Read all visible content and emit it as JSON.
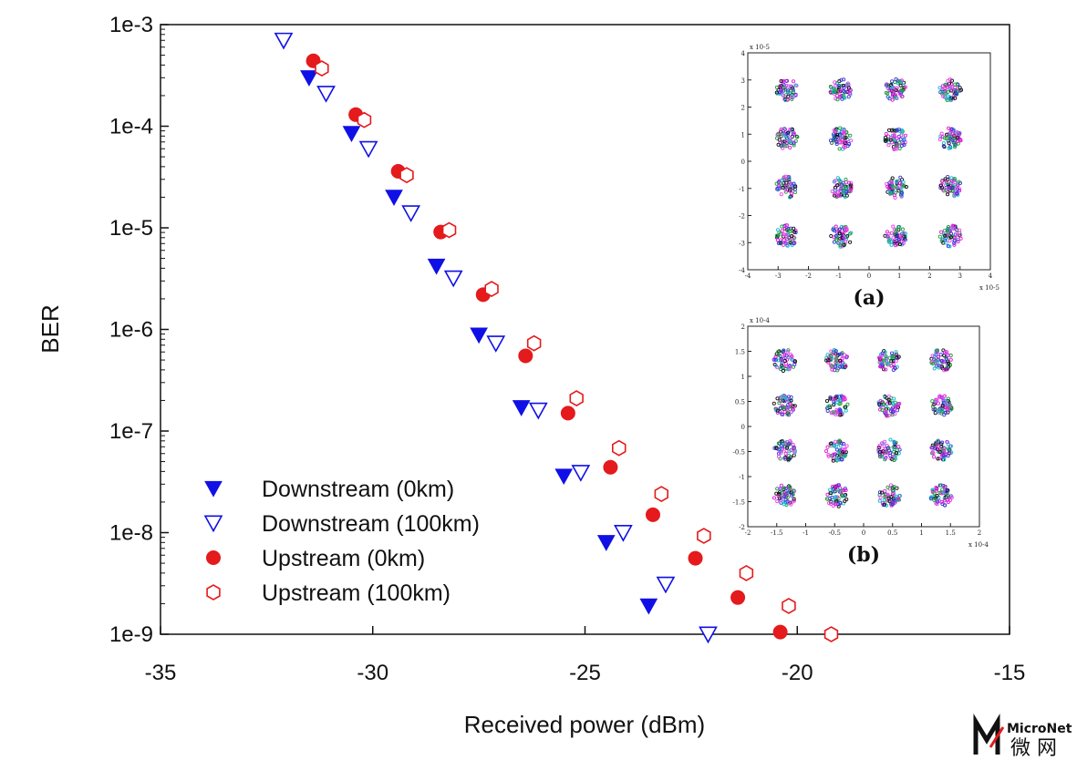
{
  "chart_data": {
    "type": "scatter",
    "xlabel": "Received power (dBm)",
    "ylabel": "BER",
    "xlim": [
      -35,
      -15
    ],
    "ylim_log10": [
      -9,
      -3
    ],
    "log_y": true,
    "x_ticks": [
      -35,
      -30,
      -25,
      -20,
      -15
    ],
    "x_tick_labels": [
      "-35",
      "-30",
      "-25",
      "-20",
      "-15"
    ],
    "y_ticks_log10": [
      -3,
      -4,
      -5,
      -6,
      -7,
      -8,
      -9
    ],
    "y_tick_labels": [
      "1e-3",
      "1e-4",
      "1e-5",
      "1e-6",
      "1e-7",
      "1e-8",
      "1e-9"
    ],
    "grid": false,
    "legend_position": "bottom-left",
    "series": [
      {
        "name": "Downstream (0km)",
        "marker": "triangle-down-filled",
        "color": "#1010e6",
        "x": [
          -31.5,
          -30.5,
          -29.5,
          -28.5,
          -27.5,
          -26.5,
          -25.5,
          -24.5,
          -23.5
        ],
        "y": [
          0.0003,
          8.5e-05,
          2e-05,
          4.2e-06,
          8.8e-07,
          1.7e-07,
          3.6e-08,
          8e-09,
          1.9e-09
        ]
      },
      {
        "name": "Downstream (100km)",
        "marker": "triangle-down-open",
        "color": "#1010e6",
        "x": [
          -32.1,
          -31.1,
          -30.1,
          -29.1,
          -28.1,
          -27.1,
          -26.1,
          -25.1,
          -24.1,
          -23.1,
          -22.1
        ],
        "y": [
          0.0007,
          0.00021,
          6e-05,
          1.4e-05,
          3.2e-06,
          7.3e-07,
          1.6e-07,
          3.9e-08,
          1e-08,
          3.1e-09,
          1e-09
        ]
      },
      {
        "name": "Upstream (0km)",
        "marker": "circle-filled",
        "color": "#e41a1c",
        "x": [
          -31.4,
          -30.4,
          -29.4,
          -28.4,
          -27.4,
          -26.4,
          -25.4,
          -24.4,
          -23.4,
          -22.4,
          -21.4,
          -20.4
        ],
        "y": [
          0.00044,
          0.00013,
          3.6e-05,
          9.1e-06,
          2.2e-06,
          5.5e-07,
          1.5e-07,
          4.4e-08,
          1.5e-08,
          5.6e-09,
          2.3e-09,
          1.05e-09
        ]
      },
      {
        "name": "Upstream (100km)",
        "marker": "hexagon-open",
        "color": "#e41a1c",
        "x": [
          -31.2,
          -30.2,
          -29.2,
          -28.2,
          -27.2,
          -26.2,
          -25.2,
          -24.2,
          -23.2,
          -22.2,
          -21.2,
          -20.2,
          -19.2
        ],
        "y": [
          0.00037,
          0.000115,
          3.3e-05,
          9.5e-06,
          2.5e-06,
          7.3e-07,
          2.1e-07,
          6.8e-08,
          2.4e-08,
          9.3e-09,
          4e-09,
          1.9e-09,
          1e-09
        ]
      }
    ],
    "insets": [
      {
        "label": "(a)",
        "description_type": "constellation-16qam",
        "x_tick_labels": [
          "-4",
          "-3",
          "-2",
          "-1",
          "0",
          "1",
          "2",
          "3",
          "4"
        ],
        "y_tick_labels": [
          "4",
          "3",
          "2",
          "1",
          "0",
          "-1",
          "-2",
          "-3",
          "-4"
        ],
        "x_exponent": "x 10-5",
        "y_exponent": "x 10-5"
      },
      {
        "label": "(b)",
        "description_type": "constellation-16qam",
        "x_tick_labels": [
          "-2",
          "-1.5",
          "-1",
          "-0.5",
          "0",
          "0.5",
          "1",
          "1.5",
          "2"
        ],
        "y_tick_labels": [
          "2",
          "1.5",
          "1",
          "0.5",
          "0",
          "-0.5",
          "-1",
          "-1.5",
          "-2"
        ],
        "x_exponent": "x 10-4",
        "y_exponent": "x 10-4"
      }
    ]
  },
  "watermark": {
    "brand": "MicroNet",
    "chinese": "微 网"
  }
}
